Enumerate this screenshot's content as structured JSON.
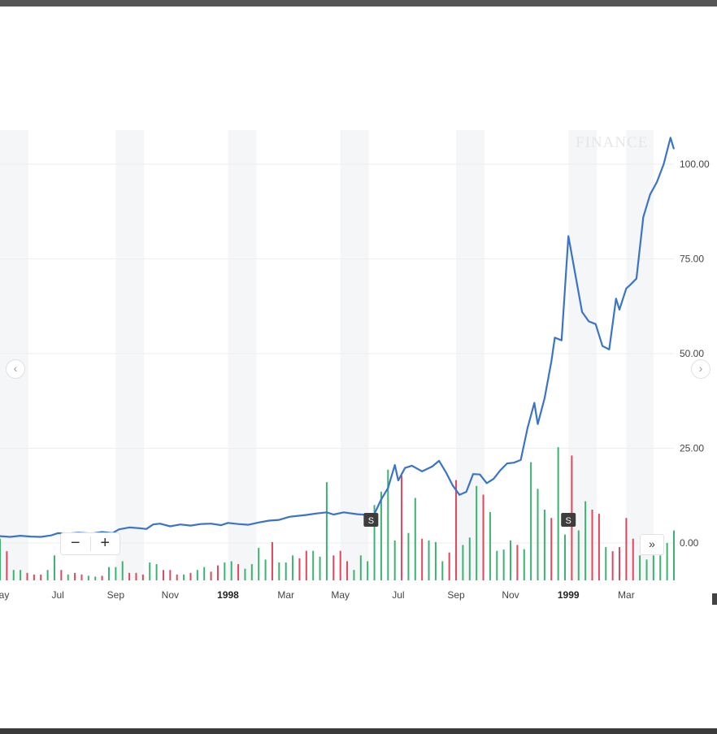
{
  "colors": {
    "line": "#3b73c9",
    "volume_up": "#3cb371",
    "volume_down": "#e0475e",
    "band": "#f5f6f8",
    "grid": "#eeeeee",
    "split_marker": "#3d3d3d"
  },
  "watermark": "FINANCE",
  "icons": {
    "prev": "chevron-left-icon",
    "next": "chevron-right-icon",
    "zoom_out": "minus-icon",
    "zoom_in": "plus-icon",
    "jump_to_end": "double-chevron-right-icon"
  },
  "controls": {
    "prev_glyph": "‹",
    "next_glyph": "›",
    "zoom_out_glyph": "−",
    "zoom_in_glyph": "+",
    "jump_glyph": "»"
  },
  "chart_data": {
    "type": "line",
    "x_tick_labels": [
      {
        "label": "May",
        "x": 1997.33
      },
      {
        "label": "Jul",
        "x": 1997.5
      },
      {
        "label": "Sep",
        "x": 1997.67
      },
      {
        "label": "Nov",
        "x": 1997.83
      },
      {
        "label": "1998",
        "x": 1998.0,
        "bold": true
      },
      {
        "label": "Mar",
        "x": 1998.17
      },
      {
        "label": "May",
        "x": 1998.33
      },
      {
        "label": "Jul",
        "x": 1998.5
      },
      {
        "label": "Sep",
        "x": 1998.67
      },
      {
        "label": "Nov",
        "x": 1998.83
      },
      {
        "label": "1999",
        "x": 1999.0,
        "bold": true
      },
      {
        "label": "Mar",
        "x": 1999.17
      }
    ],
    "y_ticks": [
      0,
      25,
      50,
      75,
      100
    ],
    "y_tick_labels": [
      "0.00",
      "25.00",
      "50.00",
      "75.00",
      "100.00"
    ],
    "xlim": [
      1997.33,
      1999.31
    ],
    "ylim": [
      -10,
      110
    ],
    "grid": true,
    "price": {
      "x": [
        1997.33,
        1997.36,
        1997.39,
        1997.42,
        1997.45,
        1997.48,
        1997.5,
        1997.53,
        1997.56,
        1997.6,
        1997.63,
        1997.66,
        1997.68,
        1997.71,
        1997.74,
        1997.76,
        1997.78,
        1997.8,
        1997.83,
        1997.86,
        1997.89,
        1997.92,
        1997.95,
        1997.98,
        1998.0,
        1998.03,
        1998.06,
        1998.09,
        1998.12,
        1998.15,
        1998.18,
        1998.2,
        1998.23,
        1998.26,
        1998.29,
        1998.31,
        1998.34,
        1998.38,
        1998.41,
        1998.43,
        1998.45,
        1998.47,
        1998.49,
        1998.5,
        1998.52,
        1998.54,
        1998.57,
        1998.6,
        1998.62,
        1998.64,
        1998.66,
        1998.68,
        1998.7,
        1998.72,
        1998.74,
        1998.76,
        1998.78,
        1998.8,
        1998.82,
        1998.84,
        1998.86,
        1998.88,
        1998.9,
        1998.91,
        1998.93,
        1998.95,
        1998.96,
        1998.98,
        1999.0,
        1999.02,
        1999.04,
        1999.06,
        1999.08,
        1999.1,
        1999.12,
        1999.14,
        1999.15,
        1999.17,
        1999.18,
        1999.2,
        1999.22,
        1999.24,
        1999.26,
        1999.28,
        1999.3,
        1999.31
      ],
      "y": [
        1.8,
        1.6,
        1.9,
        1.7,
        1.6,
        2.0,
        2.6,
        2.5,
        2.7,
        2.5,
        2.9,
        2.6,
        3.6,
        4.1,
        3.9,
        3.7,
        4.9,
        5.1,
        4.4,
        4.9,
        4.6,
        5.0,
        5.1,
        4.7,
        5.3,
        5.0,
        4.8,
        5.4,
        5.9,
        6.1,
        6.9,
        7.1,
        7.4,
        7.8,
        8.1,
        7.5,
        8.1,
        7.6,
        7.4,
        7.7,
        11.5,
        14.5,
        20.6,
        16.5,
        19.8,
        20.4,
        18.9,
        20.2,
        21.7,
        18.7,
        15.2,
        12.7,
        13.5,
        18.2,
        18.1,
        15.8,
        16.9,
        19.2,
        21.0,
        21.2,
        21.9,
        30.4,
        37.0,
        31.4,
        38.2,
        48.0,
        54.2,
        53.5,
        81.0,
        71.0,
        61.0,
        58.5,
        57.8,
        52.0,
        51.1,
        64.5,
        61.6,
        67.2,
        68.0,
        69.8,
        86.0,
        92.0,
        95.3,
        100.0,
        107.0,
        104.0
      ]
    },
    "volume": {
      "x": [
        1997.33,
        1997.35,
        1997.37,
        1997.39,
        1997.41,
        1997.43,
        1997.45,
        1997.47,
        1997.49,
        1997.51,
        1997.53,
        1997.55,
        1997.57,
        1997.59,
        1997.61,
        1997.63,
        1997.65,
        1997.67,
        1997.69,
        1997.71,
        1997.73,
        1997.75,
        1997.77,
        1997.79,
        1997.81,
        1997.83,
        1997.85,
        1997.87,
        1997.89,
        1997.91,
        1997.93,
        1997.95,
        1997.97,
        1997.99,
        1998.01,
        1998.03,
        1998.05,
        1998.07,
        1998.09,
        1998.11,
        1998.13,
        1998.15,
        1998.17,
        1998.19,
        1998.21,
        1998.23,
        1998.25,
        1998.27,
        1998.29,
        1998.31,
        1998.33,
        1998.35,
        1998.37,
        1998.39,
        1998.41,
        1998.43,
        1998.45,
        1998.47,
        1998.49,
        1998.51,
        1998.53,
        1998.55,
        1998.57,
        1998.59,
        1998.61,
        1998.63,
        1998.65,
        1998.67,
        1998.69,
        1998.71,
        1998.73,
        1998.75,
        1998.77,
        1998.79,
        1998.81,
        1998.83,
        1998.85,
        1998.87,
        1998.89,
        1998.91,
        1998.93,
        1998.95,
        1998.97,
        1998.99,
        1999.01,
        1999.03,
        1999.05,
        1999.07,
        1999.09,
        1999.11,
        1999.13,
        1999.15,
        1999.17,
        1999.19,
        1999.21,
        1999.23,
        1999.25,
        1999.27,
        1999.29,
        1999.31
      ],
      "v": [
        10,
        7,
        2.5,
        2.5,
        1.8,
        1.4,
        1.4,
        2.5,
        6,
        2.5,
        1.4,
        1.8,
        1.4,
        1.1,
        0.9,
        1.1,
        3.2,
        3.2,
        4.6,
        1.8,
        1.8,
        1.4,
        4.3,
        3.9,
        2.5,
        2.5,
        1.4,
        1.4,
        1.8,
        2.5,
        3.2,
        2.1,
        3.6,
        4.3,
        4.6,
        3.9,
        2.8,
        3.9,
        7.8,
        5,
        9.2,
        4.3,
        4.3,
        6,
        5.3,
        7.1,
        7.1,
        5.7,
        23.6,
        6,
        7.1,
        4.6,
        2.5,
        6,
        4.6,
        18.1,
        21.3,
        26.6,
        9.6,
        25.2,
        11.4,
        19.8,
        10,
        9.6,
        9.2,
        4.6,
        6.7,
        24.1,
        8.5,
        10.3,
        22.7,
        20.6,
        16.4,
        7.1,
        7.4,
        9.6,
        8.5,
        7.5,
        28.4,
        22,
        17,
        15,
        32,
        11,
        30,
        12,
        19,
        17,
        16,
        8,
        7,
        8,
        15,
        10,
        6,
        5,
        6,
        6,
        9,
        12
      ],
      "dir": [
        "u",
        "d",
        "u",
        "u",
        "d",
        "d",
        "d",
        "u",
        "u",
        "d",
        "u",
        "d",
        "d",
        "u",
        "u",
        "d",
        "u",
        "u",
        "u",
        "d",
        "d",
        "d",
        "u",
        "u",
        "d",
        "d",
        "d",
        "u",
        "d",
        "u",
        "u",
        "d",
        "d",
        "u",
        "u",
        "d",
        "u",
        "u",
        "u",
        "u",
        "d",
        "u",
        "u",
        "u",
        "d",
        "d",
        "u",
        "u",
        "u",
        "d",
        "d",
        "d",
        "u",
        "u",
        "u",
        "u",
        "u",
        "u",
        "u",
        "d",
        "u",
        "u",
        "d",
        "u",
        "u",
        "u",
        "d",
        "d",
        "u",
        "u",
        "u",
        "d",
        "u",
        "u",
        "u",
        "u",
        "d",
        "u",
        "u",
        "u",
        "u",
        "d",
        "u",
        "u",
        "d",
        "u",
        "u",
        "d",
        "d",
        "u",
        "d",
        "d",
        "d",
        "d",
        "u",
        "u",
        "u",
        "u",
        "u",
        "u"
      ],
      "max_display": 100
    },
    "split_markers": [
      {
        "x": 1998.42,
        "label": "S"
      },
      {
        "x": 1999.0,
        "label": "S"
      }
    ]
  }
}
